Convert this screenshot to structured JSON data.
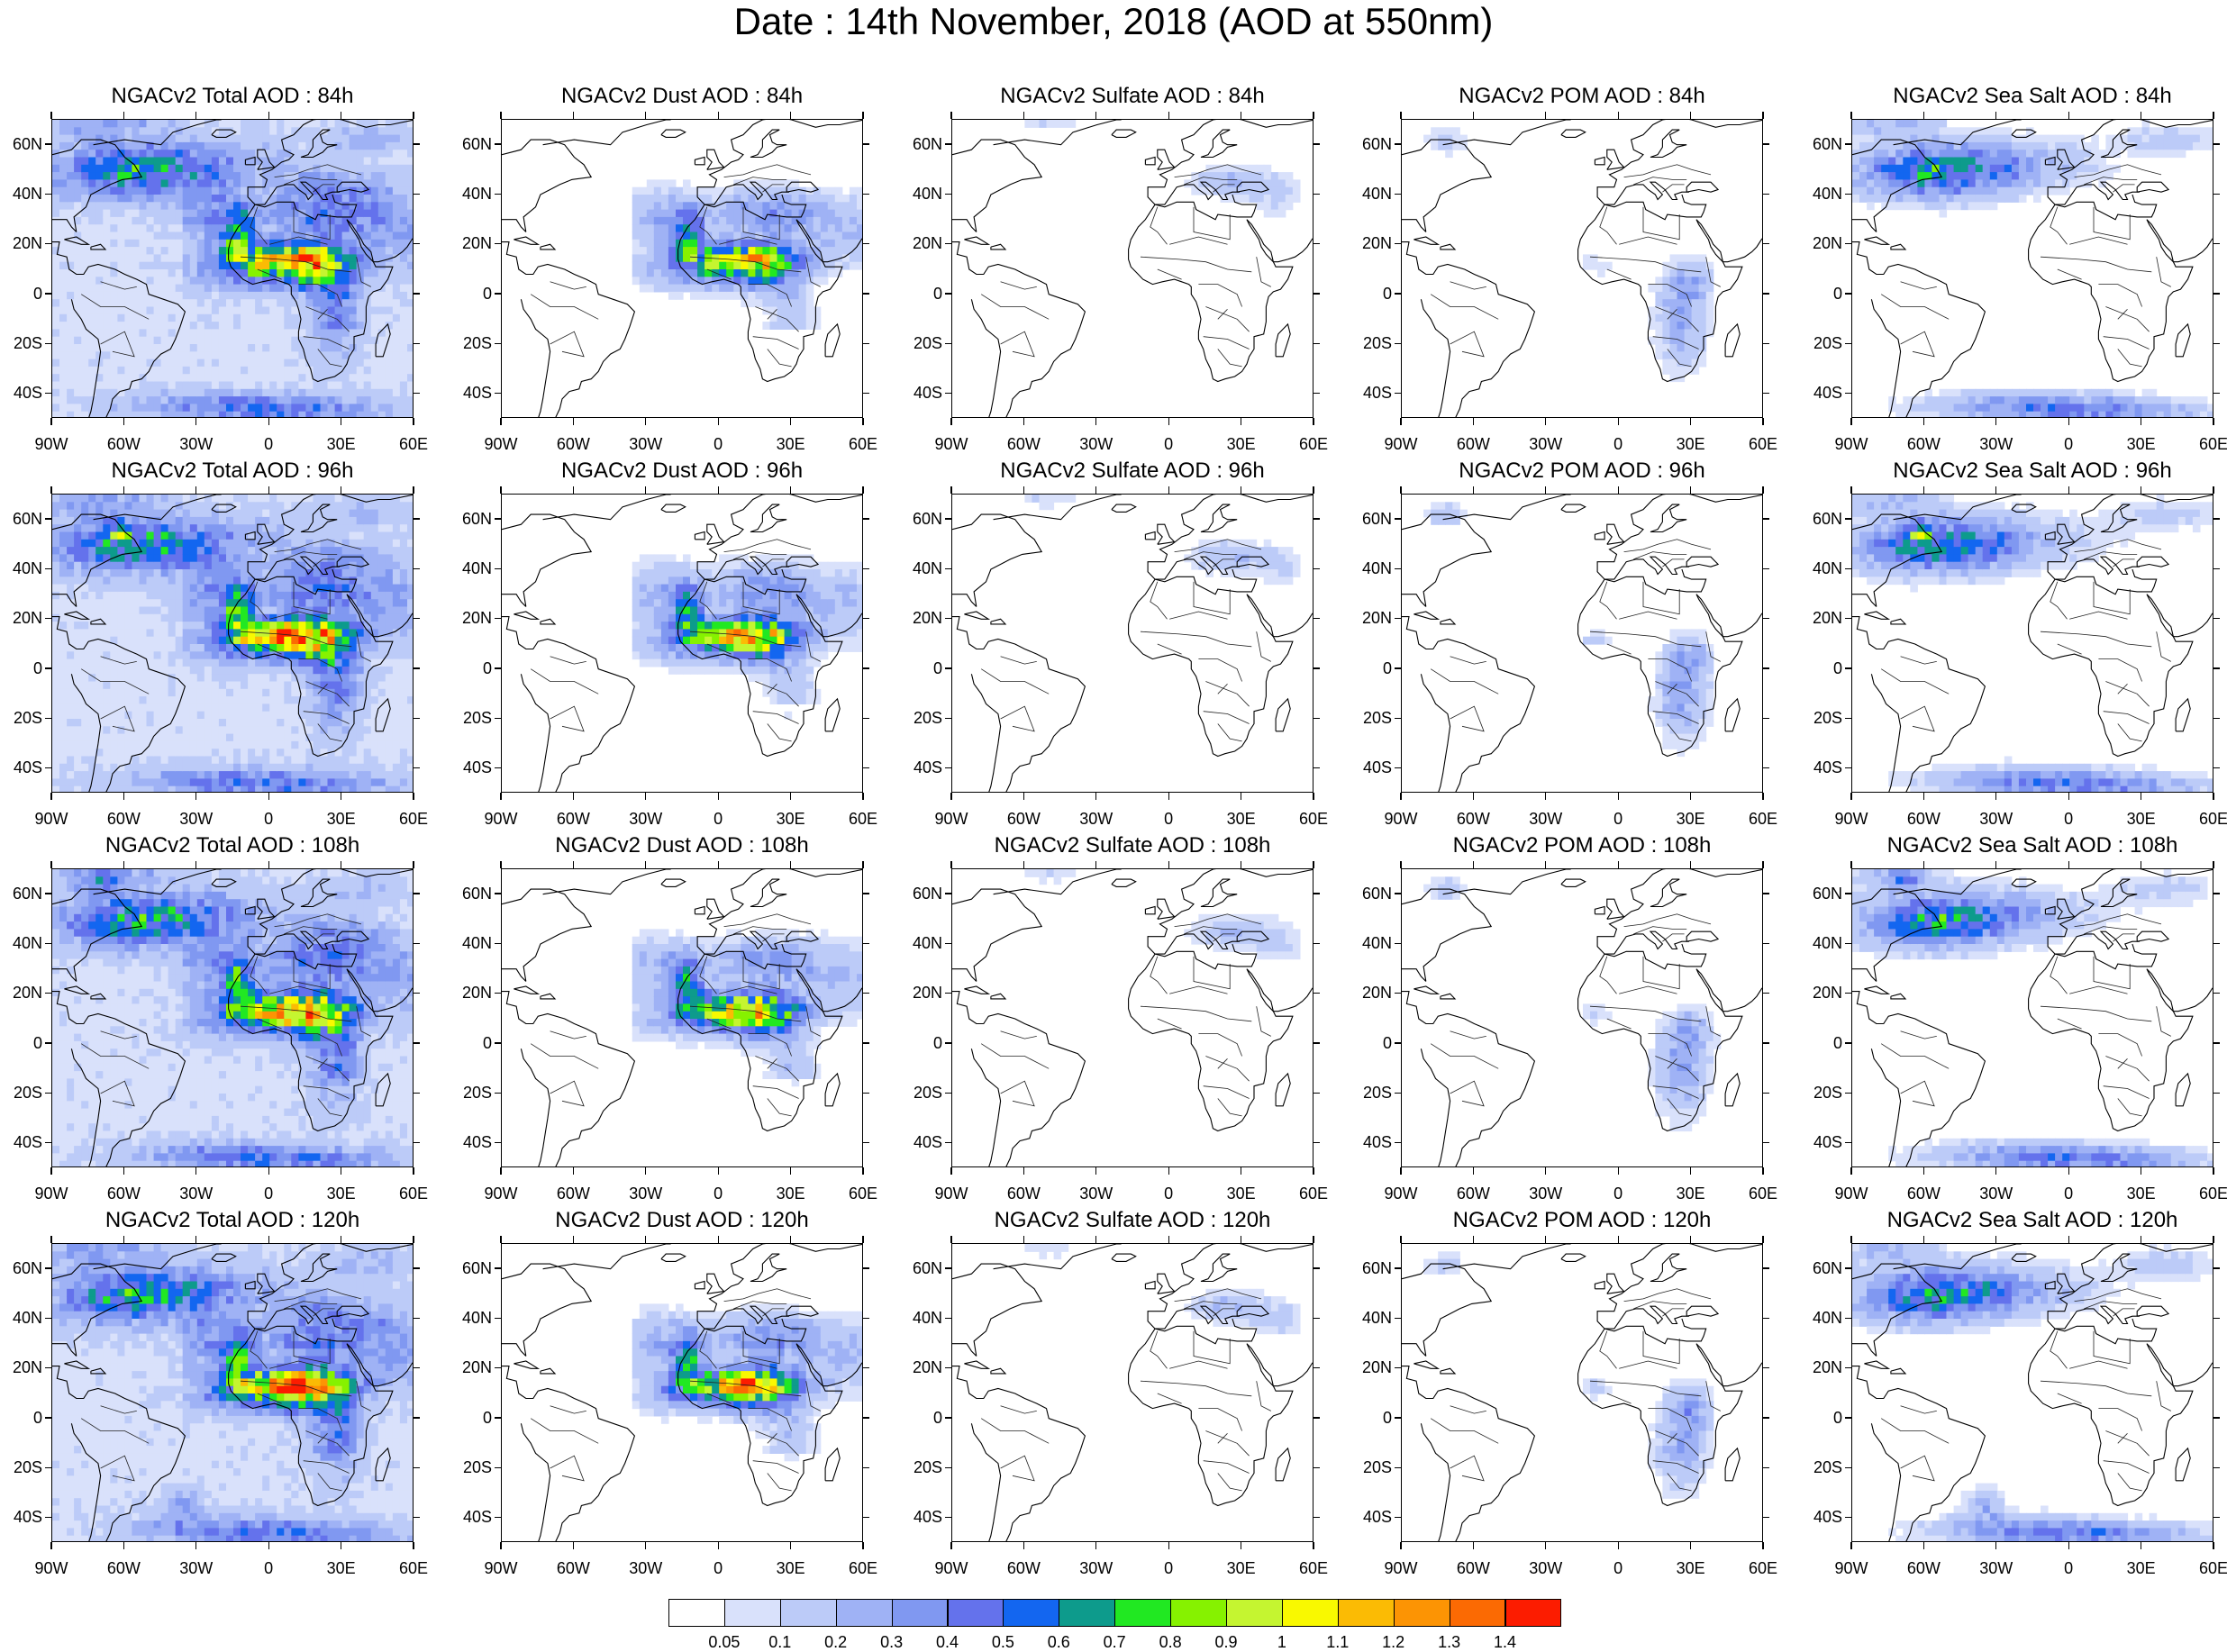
{
  "title": "Date : 14th November, 2018 (AOD at 550nm)",
  "lat_labels": [
    "60N",
    "40N",
    "20N",
    "0",
    "20S",
    "40S"
  ],
  "lon_labels": [
    "90W",
    "60W",
    "30W",
    "0",
    "30E",
    "60E"
  ],
  "panel_titles": [
    [
      "NGACv2 Total AOD : 84h",
      "NGACv2 Dust AOD : 84h",
      "NGACv2 Sulfate AOD : 84h",
      "NGACv2 POM AOD : 84h",
      "NGACv2 Sea Salt AOD : 84h"
    ],
    [
      "NGACv2 Total AOD : 96h",
      "NGACv2 Dust AOD : 96h",
      "NGACv2 Sulfate AOD : 96h",
      "NGACv2 POM AOD : 96h",
      "NGACv2 Sea Salt AOD : 96h"
    ],
    [
      "NGACv2 Total AOD : 108h",
      "NGACv2 Dust AOD : 108h",
      "NGACv2 Sulfate AOD : 108h",
      "NGACv2 POM AOD : 108h",
      "NGACv2 Sea Salt AOD : 108h"
    ],
    [
      "NGACv2 Total AOD : 120h",
      "NGACv2 Dust AOD : 120h",
      "NGACv2 Sulfate AOD : 120h",
      "NGACv2 POM AOD : 120h",
      "NGACv2 Sea Salt  AOD : 120h"
    ]
  ],
  "map_extent": {
    "lon": [
      -90,
      60
    ],
    "lat": [
      -50,
      70
    ]
  },
  "colorbar": {
    "labels": [
      "0.05",
      "0.1",
      "0.2",
      "0.3",
      "0.4",
      "0.5",
      "0.6",
      "0.7",
      "0.8",
      "0.9",
      "1",
      "1.1",
      "1.2",
      "1.3",
      "1.4"
    ],
    "colors": [
      "#ffffff",
      "#d9e1fb",
      "#bccbf8",
      "#9fb2f5",
      "#8098f1",
      "#6472ec",
      "#1366f0",
      "#0d9b8c",
      "#21e822",
      "#86f200",
      "#c5f530",
      "#f9f900",
      "#fbbb04",
      "#fc9404",
      "#fb6a03",
      "#fc1c00"
    ]
  }
}
